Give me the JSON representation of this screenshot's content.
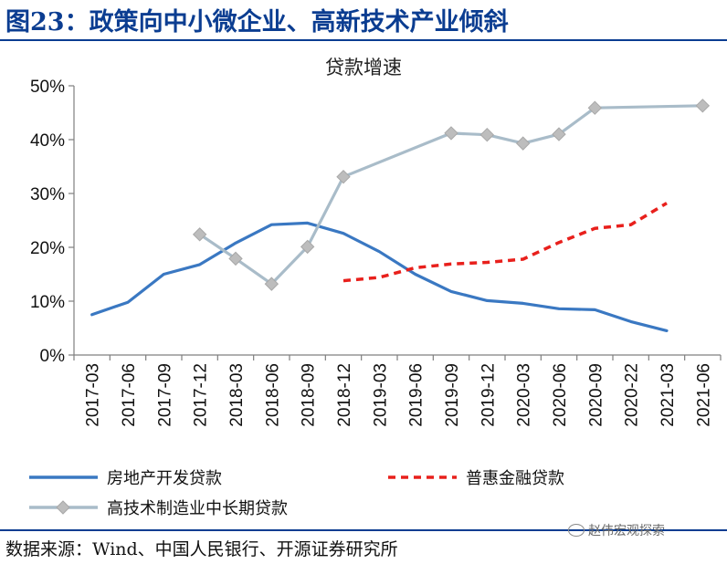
{
  "figure": {
    "title": "图23：政策向中小微企业、高新技术产业倾斜",
    "source": "数据来源：Wind、中国人民银行、开源证券研究所",
    "watermark": "赵伟宏观探索",
    "watermark_icon": "wechat-icon"
  },
  "chart_data": {
    "type": "line",
    "title": "贷款增速",
    "xlabel": "",
    "ylabel": "",
    "ylim": [
      0,
      50
    ],
    "yticks": [
      "0%",
      "10%",
      "20%",
      "30%",
      "40%",
      "50%"
    ],
    "categories": [
      "2017-03",
      "2017-06",
      "2017-09",
      "2017-12",
      "2018-03",
      "2018-06",
      "2018-09",
      "2018-12",
      "2019-03",
      "2019-06",
      "2019-09",
      "2019-12",
      "2020-03",
      "2020-06",
      "2020-09",
      "2020-22",
      "2021-03",
      "2021-06"
    ],
    "series": [
      {
        "name": "房地产开发贷款",
        "color": "#3a78c2",
        "style": "solid",
        "marker": "none",
        "values": [
          7.5,
          9.8,
          15.0,
          16.8,
          20.8,
          24.2,
          24.5,
          22.6,
          19.2,
          15.0,
          11.8,
          10.1,
          9.6,
          8.6,
          8.4,
          6.2,
          4.5,
          null
        ]
      },
      {
        "name": "普惠金融贷款",
        "color": "#e8201c",
        "style": "dashed",
        "marker": "none",
        "values": [
          null,
          null,
          null,
          null,
          null,
          null,
          null,
          13.8,
          14.4,
          16.2,
          16.9,
          17.2,
          17.8,
          20.9,
          23.5,
          24.2,
          28.2,
          null
        ]
      },
      {
        "name": "高技术制造业中长期贷款",
        "color": "#a9bcc9",
        "style": "solid",
        "marker": "diamond",
        "marker_color": "#bdbdbd",
        "values": [
          null,
          null,
          null,
          22.4,
          17.9,
          13.2,
          20.1,
          33.1,
          null,
          null,
          41.2,
          40.9,
          39.3,
          41.0,
          45.9,
          null,
          null,
          46.3
        ]
      }
    ],
    "legend": "bottom"
  }
}
